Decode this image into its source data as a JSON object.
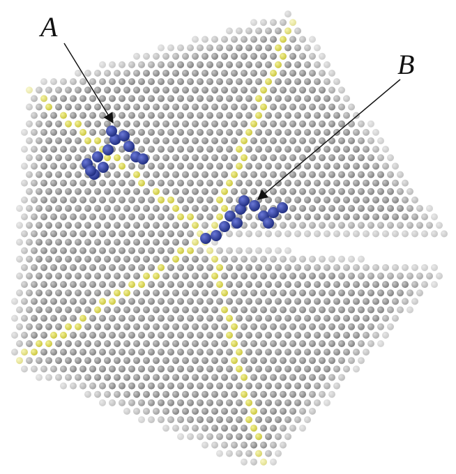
{
  "labels": [
    "A",
    "B"
  ]
}
